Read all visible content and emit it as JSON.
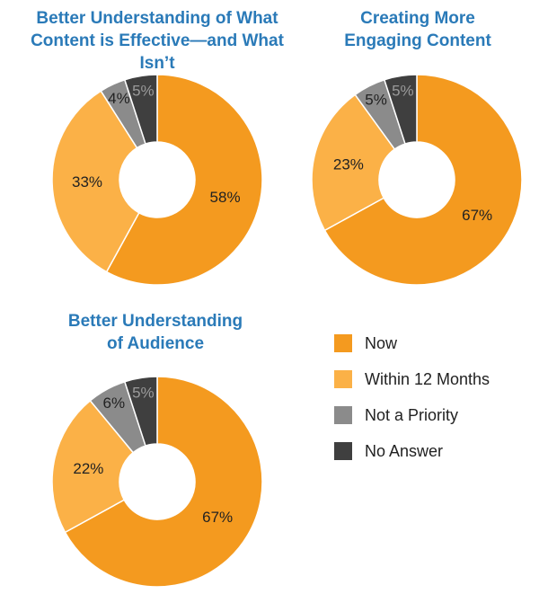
{
  "colors": {
    "now": "#f49a1f",
    "within_12_months": "#fbb147",
    "not_a_priority": "#8b8b8b",
    "no_answer": "#3f3f3f",
    "title": "#2a7ab8"
  },
  "legend": [
    {
      "key": "now",
      "label": "Now"
    },
    {
      "key": "within_12_months",
      "label": "Within 12 Months"
    },
    {
      "key": "not_a_priority",
      "label": "Not a Priority"
    },
    {
      "key": "no_answer",
      "label": "No Answer"
    }
  ],
  "chart_data": [
    {
      "type": "pie",
      "donut": true,
      "title_lines": [
        "Better Understanding of What",
        "Content is Effective—and What Isn’t"
      ],
      "categories": [
        "Now",
        "Within 12 Months",
        "Not a Priority",
        "No Answer"
      ],
      "values": [
        58,
        33,
        4,
        5
      ],
      "labels": [
        "58%",
        "33%",
        "4%",
        "5%"
      ]
    },
    {
      "type": "pie",
      "donut": true,
      "title_lines": [
        "Creating More",
        "Engaging Content"
      ],
      "categories": [
        "Now",
        "Within 12 Months",
        "Not a Priority",
        "No Answer"
      ],
      "values": [
        67,
        23,
        5,
        5
      ],
      "labels": [
        "67%",
        "23%",
        "5%",
        "5%"
      ]
    },
    {
      "type": "pie",
      "donut": true,
      "title_lines": [
        "Better Understanding",
        "of Audience"
      ],
      "categories": [
        "Now",
        "Within 12 Months",
        "Not a Priority",
        "No Answer"
      ],
      "values": [
        67,
        22,
        6,
        5
      ],
      "labels": [
        "67%",
        "22%",
        "6%",
        "5%"
      ]
    }
  ]
}
